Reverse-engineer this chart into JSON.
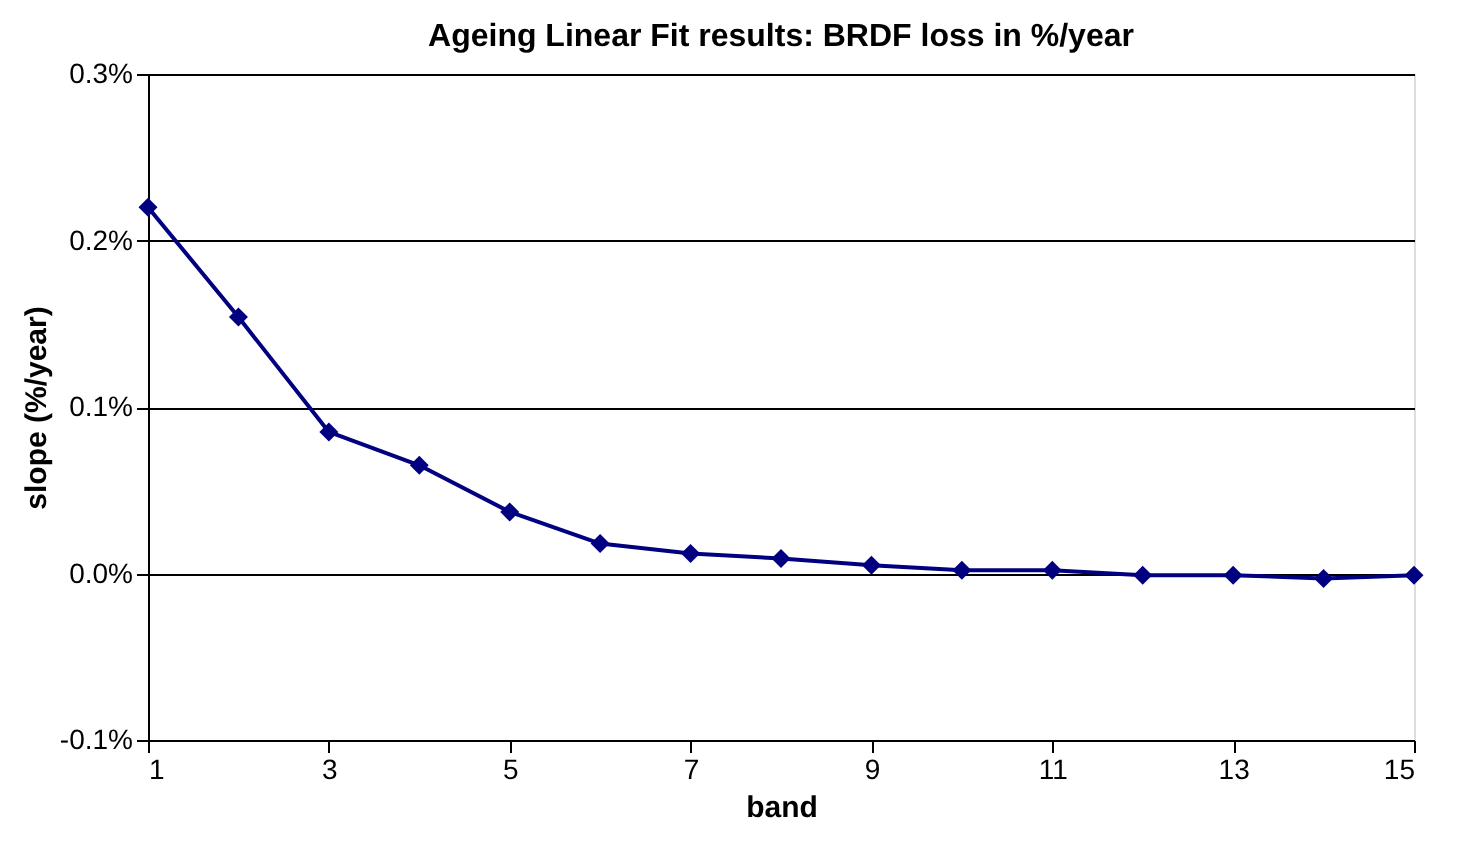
{
  "chart_data": {
    "type": "line",
    "title": "Ageing Linear Fit results: BRDF loss in %/year",
    "xlabel": "band",
    "ylabel": "slope (%/year)",
    "x": [
      1,
      2,
      3,
      4,
      5,
      6,
      7,
      8,
      9,
      10,
      11,
      12,
      13,
      14,
      15
    ],
    "series": [
      {
        "color": "#000080",
        "values": [
          0.22,
          0.154,
          0.085,
          0.065,
          0.037,
          0.018,
          0.012,
          0.009,
          0.005,
          0.002,
          0.002,
          -0.001,
          -0.001,
          -0.003,
          -0.001
        ]
      }
    ],
    "xlim": [
      1,
      15
    ],
    "xticks": [
      1,
      3,
      5,
      7,
      9,
      11,
      13,
      15
    ],
    "ylim": [
      -0.1,
      0.3
    ],
    "yticks": [
      {
        "value": -0.1,
        "label": "-0.1%"
      },
      {
        "value": 0,
        "label": "0.0%"
      },
      {
        "value": 0.1,
        "label": "0.1%"
      },
      {
        "value": 0.2,
        "label": "0.2%"
      },
      {
        "value": 0.3,
        "label": "0.3%"
      }
    ],
    "grid": "y",
    "marker": "diamond",
    "line_style": "solid"
  }
}
